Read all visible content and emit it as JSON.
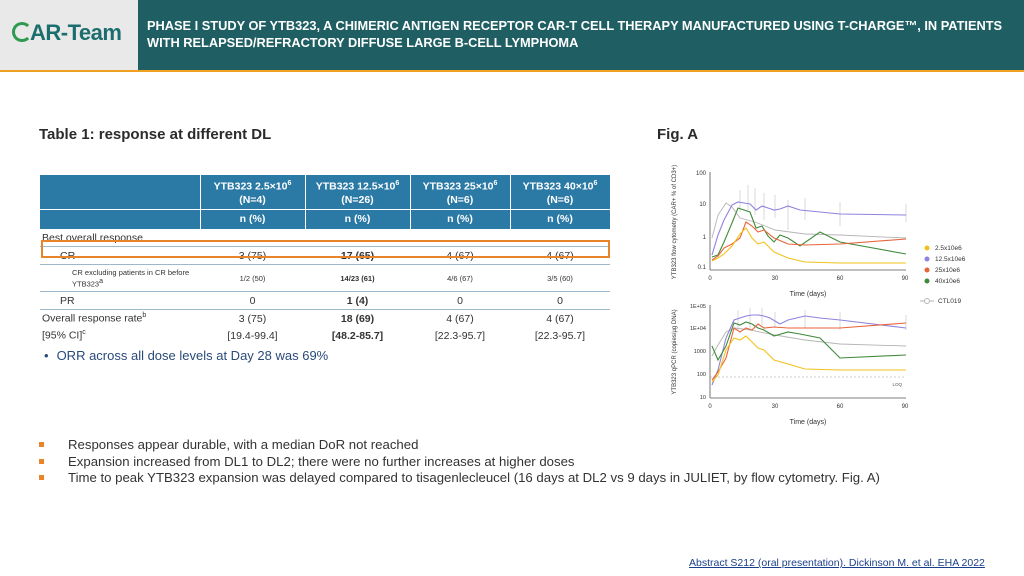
{
  "header": {
    "logo": {
      "prefix": "C",
      "rest": "AR-Team"
    },
    "title": "PHASE I STUDY OF YTB323, A CHIMERIC ANTIGEN RECEPTOR CAR-T CELL THERAPY MANUFACTURED USING T-CHARGE™, IN PATIENTS WITH RELAPSED/REFRACTORY DIFFUSE LARGE B-CELL LYMPHOMA"
  },
  "table_section": {
    "title": "Table 1: response at different DL",
    "columns": [
      {
        "line1": "YTB323 2.5×10",
        "exp": "6",
        "line2": "(N=4)"
      },
      {
        "line1": "YTB323 12.5×10",
        "exp": "6",
        "line2": "(N=26)"
      },
      {
        "line1": "YTB323 25×10",
        "exp": "6",
        "line2": "(N=6)"
      },
      {
        "line1": "YTB323 40×10",
        "exp": "6",
        "line2": "(N=6)"
      }
    ],
    "subheader": [
      "n (%)",
      "n (%)",
      "n (%)",
      "n (%)"
    ],
    "best_overall_label": "Best overall response",
    "rows": {
      "cr": {
        "label": "CR",
        "values": [
          "3 (75)",
          "17 (65)",
          "4 (67)",
          "4 (67)"
        ]
      },
      "cr_excl": {
        "label": "CR excluding patients in CR before YTB323",
        "sup": "a",
        "values": [
          "1/2 (50)",
          "14/23 (61)",
          "4/6 (67)",
          "3/5 (60)"
        ]
      },
      "pr": {
        "label": "PR",
        "values": [
          "0",
          "1 (4)",
          "0",
          "0"
        ]
      },
      "orr": {
        "label": "Overall response rate",
        "sup": "b",
        "values": [
          "3 (75)",
          "18 (69)",
          "4 (67)",
          "4 (67)"
        ]
      },
      "ci": {
        "label": "[95% CI]",
        "sup": "c",
        "values": [
          "[19.4-99.4]",
          "[48.2-85.7]",
          "[22.3-95.7]",
          "[22.3-95.7]"
        ]
      }
    },
    "orr_note": "ORR across all dose levels at Day 28 was 69%"
  },
  "figure": {
    "title": "Fig. A",
    "top_panel": {
      "ylabel": "YTB323 flow cytometry (CAR+ % of CD3+)",
      "yticks": [
        "100",
        "10",
        "1",
        "0.1"
      ],
      "xticks": [
        "0",
        "30",
        "60",
        "90"
      ],
      "xlabel": "Time (days)"
    },
    "bottom_panel": {
      "ylabel": "YTB323 qPCR (copies/µg DNA)",
      "yticks": [
        "1E+05",
        "1E+04",
        "1000",
        "100",
        "10"
      ],
      "xticks": [
        "0",
        "30",
        "60",
        "90"
      ],
      "xlabel": "Time (days)",
      "loq": "LOQ"
    },
    "legend": [
      {
        "name": "2.5x10e6",
        "color": "#f2c21b"
      },
      {
        "name": "12.5x10e6",
        "color": "#8d83e0"
      },
      {
        "name": "25x10e6",
        "color": "#e8643a"
      },
      {
        "name": "40x10e6",
        "color": "#3f8a3a"
      },
      {
        "name": "CTL019",
        "color": "#b5b5b5"
      }
    ]
  },
  "bullets": [
    "Responses appear durable, with a median DoR not reached",
    "Expansion increased from DL1 to DL2; there were no further increases at higher doses",
    "Time to peak YTB323 expansion was delayed compared to tisagenlecleucel (16 days at DL2 vs 9 days in JULIET, by flow cytometry. Fig. A)"
  ],
  "footer": {
    "reference": "Abstract S212 (oral presentation). Dickinson M. et al. EHA 2022"
  }
}
